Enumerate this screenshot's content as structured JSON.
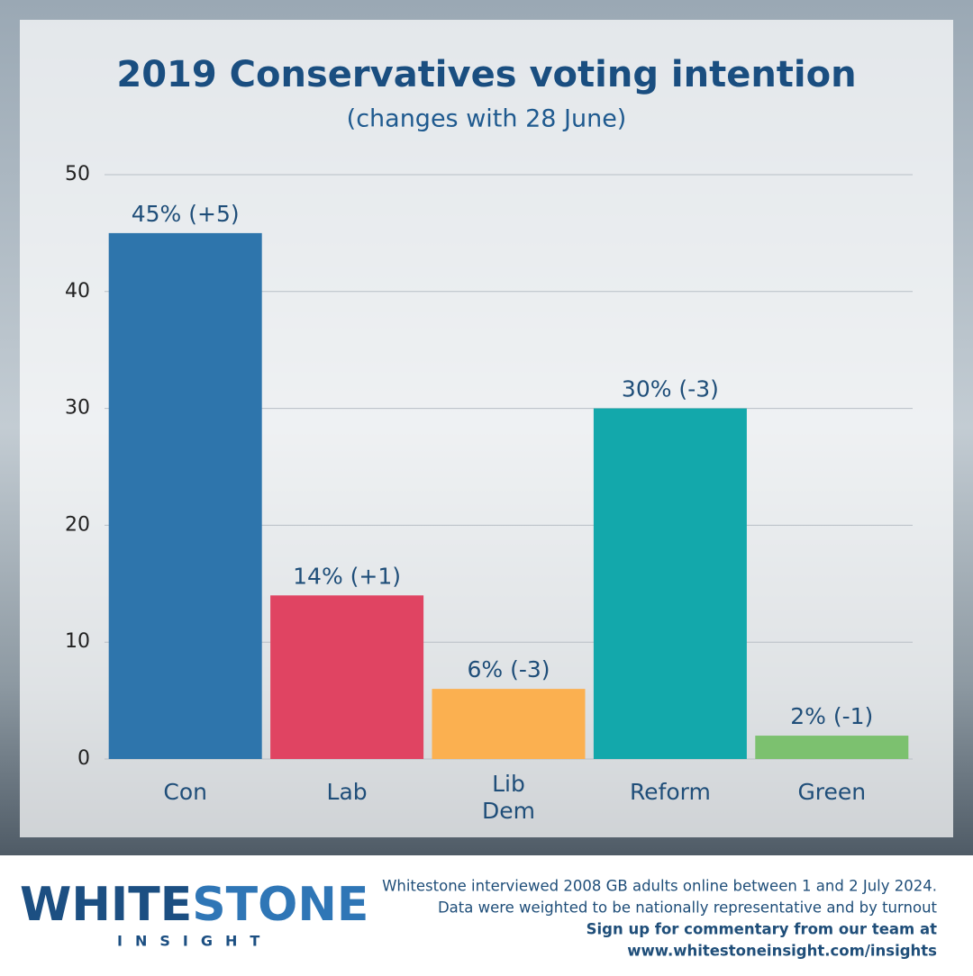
{
  "chart_data": {
    "type": "bar",
    "title": "2019 Conservatives voting intention",
    "subtitle": "(changes with 28 June)",
    "categories": [
      "Con",
      "Lab",
      "Lib Dem",
      "Reform",
      "Green"
    ],
    "values": [
      45,
      14,
      6,
      30,
      2
    ],
    "value_labels": [
      "45% (+5)",
      "14% (+1)",
      "6% (-3)",
      "30% (-3)",
      "2% (-1)"
    ],
    "colors": [
      "#2e75ac",
      "#e04462",
      "#fbb050",
      "#13a8ab",
      "#7cc16f"
    ],
    "ylim": [
      0,
      50
    ],
    "yticks": [
      0,
      10,
      20,
      30,
      40,
      50
    ],
    "grid": true
  },
  "footer": {
    "logo": [
      "WHITE",
      "STONE"
    ],
    "logo_sub": "INSIGHT",
    "notes": [
      "Whitestone interviewed 2008 GB adults online between 1 and 2 July 2024.",
      "Data were weighted to be nationally representative and by turnout"
    ],
    "signup": [
      "Sign up for commentary from our team at",
      "www.whitestoneinsight.com/insights"
    ]
  }
}
